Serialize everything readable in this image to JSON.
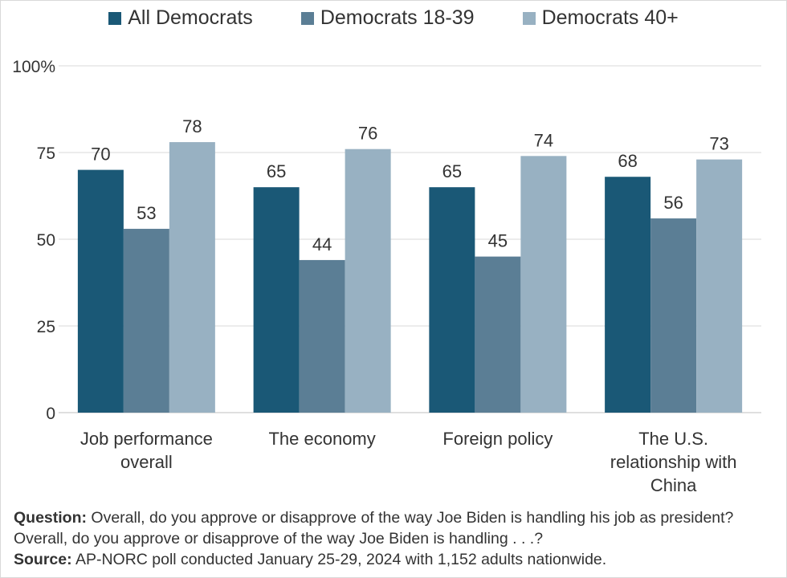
{
  "chart_data": {
    "type": "bar",
    "categories": [
      "Job performance overall",
      "The economy",
      "Foreign policy",
      "The U.S. relationship with China"
    ],
    "category_lines": [
      [
        "Job performance",
        "overall"
      ],
      [
        "The economy"
      ],
      [
        "Foreign policy"
      ],
      [
        "The U.S.",
        "relationship with",
        "China"
      ]
    ],
    "series": [
      {
        "name": "All Democrats",
        "color": "#1a5876",
        "values": [
          70,
          65,
          65,
          68
        ]
      },
      {
        "name": "Democrats 18-39",
        "color": "#5b7e95",
        "values": [
          53,
          44,
          45,
          56
        ]
      },
      {
        "name": "Democrats 40+",
        "color": "#98b1c2",
        "values": [
          78,
          76,
          74,
          73
        ]
      }
    ],
    "ylim": [
      0,
      100
    ],
    "yticks": [
      0,
      25,
      50,
      75,
      100
    ],
    "ytick_labels": [
      "0",
      "25",
      "50",
      "75",
      "100%"
    ],
    "grid": true,
    "legend_position": "top"
  },
  "notes": {
    "question_label": "Question:",
    "question_text": " Overall, do you approve or disapprove of the way Joe Biden is handling his job as president? Overall, do you approve or disapprove of the way Joe Biden is handling . . .?",
    "source_label": "Source:",
    "source_text": " AP-NORC poll conducted January 25-29, 2024 with 1,152 adults nationwide."
  }
}
